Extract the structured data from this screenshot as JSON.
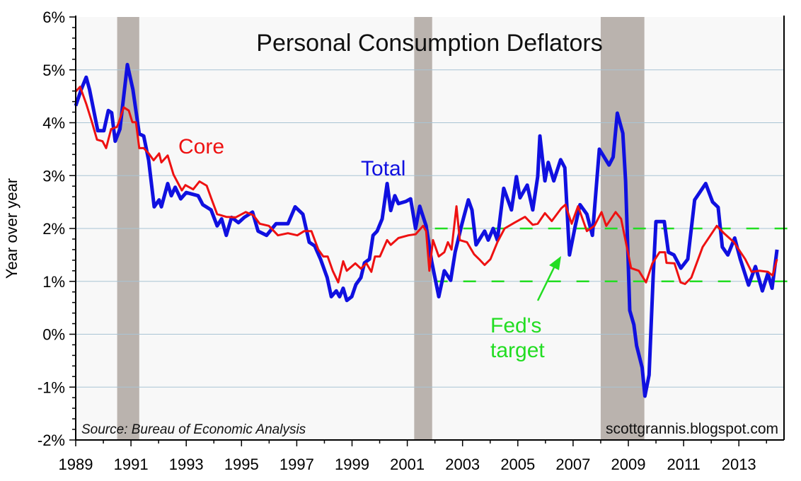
{
  "chart_data": {
    "type": "line",
    "title": "Personal Consumption Deflators",
    "ylabel": "Year over year",
    "xlabel": "",
    "xlim": [
      1989,
      2014.6
    ],
    "ylim": [
      -2,
      6
    ],
    "grid": true,
    "x_ticks": [
      "1989",
      "1991",
      "1993",
      "1995",
      "1997",
      "1999",
      "2001",
      "2003",
      "2005",
      "2007",
      "2009",
      "2011",
      "2013"
    ],
    "y_ticks": [
      "-2%",
      "-1%",
      "0%",
      "1%",
      "2%",
      "3%",
      "4%",
      "5%",
      "6%"
    ],
    "source": "Source:  Bureau of Economic Analysis",
    "credit": "scottgrannis.blogspot.com",
    "recessions": [
      [
        1990.5,
        1991.3
      ],
      [
        2001.25,
        2001.9
      ],
      [
        2008.0,
        2009.58
      ]
    ],
    "target": {
      "label_line1": "Fed's",
      "label_line2": "target",
      "low": 1,
      "high": 2,
      "start": 2002.0,
      "color": "#22dd22"
    },
    "colors": {
      "total": "#1010e0",
      "core": "#ee1111",
      "recession": "#bab3ae",
      "grid": "#a9c4d4",
      "background": "#f8f8f8"
    },
    "series": [
      {
        "name": "Total",
        "color": "#1010e0",
        "points": [
          [
            1989.0,
            4.32
          ],
          [
            1989.2,
            4.63
          ],
          [
            1989.38,
            4.86
          ],
          [
            1989.5,
            4.63
          ],
          [
            1989.8,
            3.85
          ],
          [
            1990.02,
            3.85
          ],
          [
            1990.18,
            4.23
          ],
          [
            1990.3,
            4.19
          ],
          [
            1990.43,
            3.65
          ],
          [
            1990.6,
            3.88
          ],
          [
            1990.87,
            5.1
          ],
          [
            1991.07,
            4.63
          ],
          [
            1991.3,
            3.79
          ],
          [
            1991.46,
            3.75
          ],
          [
            1991.64,
            3.29
          ],
          [
            1991.84,
            2.41
          ],
          [
            1992.02,
            2.54
          ],
          [
            1992.1,
            2.41
          ],
          [
            1992.33,
            2.85
          ],
          [
            1992.46,
            2.62
          ],
          [
            1992.6,
            2.78
          ],
          [
            1992.8,
            2.56
          ],
          [
            1993.0,
            2.68
          ],
          [
            1993.43,
            2.62
          ],
          [
            1993.6,
            2.45
          ],
          [
            1993.9,
            2.35
          ],
          [
            1994.12,
            2.05
          ],
          [
            1994.28,
            2.18
          ],
          [
            1994.45,
            1.87
          ],
          [
            1994.64,
            2.21
          ],
          [
            1994.89,
            2.11
          ],
          [
            1995.1,
            2.21
          ],
          [
            1995.4,
            2.31
          ],
          [
            1995.6,
            1.95
          ],
          [
            1995.91,
            1.87
          ],
          [
            1996.25,
            2.09
          ],
          [
            1996.68,
            2.09
          ],
          [
            1996.94,
            2.41
          ],
          [
            1997.22,
            2.27
          ],
          [
            1997.45,
            1.74
          ],
          [
            1997.65,
            1.67
          ],
          [
            1997.86,
            1.42
          ],
          [
            1998.1,
            1.07
          ],
          [
            1998.25,
            0.71
          ],
          [
            1998.43,
            0.82
          ],
          [
            1998.55,
            0.71
          ],
          [
            1998.68,
            0.87
          ],
          [
            1998.81,
            0.64
          ],
          [
            1998.99,
            0.71
          ],
          [
            1999.14,
            0.94
          ],
          [
            1999.32,
            1.07
          ],
          [
            1999.45,
            1.35
          ],
          [
            1999.63,
            1.42
          ],
          [
            1999.76,
            1.87
          ],
          [
            1999.91,
            1.95
          ],
          [
            2000.09,
            2.18
          ],
          [
            2000.27,
            2.85
          ],
          [
            2000.4,
            2.34
          ],
          [
            2000.55,
            2.62
          ],
          [
            2000.68,
            2.47
          ],
          [
            2000.94,
            2.51
          ],
          [
            2001.12,
            2.56
          ],
          [
            2001.3,
            2.0
          ],
          [
            2001.45,
            2.42
          ],
          [
            2001.68,
            2.05
          ],
          [
            2001.88,
            1.38
          ],
          [
            2002.14,
            0.71
          ],
          [
            2002.34,
            1.2
          ],
          [
            2002.57,
            1.02
          ],
          [
            2002.73,
            1.55
          ],
          [
            2002.98,
            2.09
          ],
          [
            2003.21,
            2.54
          ],
          [
            2003.34,
            2.35
          ],
          [
            2003.49,
            1.69
          ],
          [
            2003.8,
            1.95
          ],
          [
            2003.93,
            1.78
          ],
          [
            2004.11,
            2.0
          ],
          [
            2004.26,
            1.78
          ],
          [
            2004.49,
            2.76
          ],
          [
            2004.77,
            2.35
          ],
          [
            2004.95,
            2.98
          ],
          [
            2005.08,
            2.58
          ],
          [
            2005.34,
            2.82
          ],
          [
            2005.54,
            2.35
          ],
          [
            2005.72,
            2.98
          ],
          [
            2005.8,
            3.75
          ],
          [
            2005.98,
            2.9
          ],
          [
            2006.1,
            3.25
          ],
          [
            2006.3,
            2.9
          ],
          [
            2006.55,
            3.3
          ],
          [
            2006.7,
            3.15
          ],
          [
            2006.87,
            1.5
          ],
          [
            2007.08,
            2.05
          ],
          [
            2007.25,
            2.45
          ],
          [
            2007.5,
            2.27
          ],
          [
            2007.7,
            1.87
          ],
          [
            2007.95,
            3.5
          ],
          [
            2008.3,
            3.2
          ],
          [
            2008.45,
            3.35
          ],
          [
            2008.6,
            4.18
          ],
          [
            2008.8,
            3.8
          ],
          [
            2008.9,
            2.9
          ],
          [
            2009.05,
            0.45
          ],
          [
            2009.2,
            0.18
          ],
          [
            2009.3,
            -0.22
          ],
          [
            2009.5,
            -0.63
          ],
          [
            2009.6,
            -1.17
          ],
          [
            2009.75,
            -0.77
          ],
          [
            2009.9,
            1.1
          ],
          [
            2010.0,
            2.13
          ],
          [
            2010.3,
            2.13
          ],
          [
            2010.45,
            1.55
          ],
          [
            2010.65,
            1.5
          ],
          [
            2010.9,
            1.25
          ],
          [
            2011.15,
            1.42
          ],
          [
            2011.4,
            2.54
          ],
          [
            2011.8,
            2.85
          ],
          [
            2012.05,
            2.5
          ],
          [
            2012.25,
            2.4
          ],
          [
            2012.4,
            1.65
          ],
          [
            2012.6,
            1.5
          ],
          [
            2012.85,
            1.82
          ],
          [
            2013.05,
            1.42
          ],
          [
            2013.35,
            0.93
          ],
          [
            2013.6,
            1.28
          ],
          [
            2013.85,
            0.82
          ],
          [
            2014.05,
            1.15
          ],
          [
            2014.2,
            0.87
          ],
          [
            2014.38,
            1.6
          ]
        ]
      },
      {
        "name": "Core",
        "color": "#ee1111",
        "points": [
          [
            1989.0,
            4.59
          ],
          [
            1989.16,
            4.68
          ],
          [
            1989.38,
            4.36
          ],
          [
            1989.59,
            4.01
          ],
          [
            1989.77,
            3.68
          ],
          [
            1989.97,
            3.65
          ],
          [
            1990.1,
            3.52
          ],
          [
            1990.28,
            3.88
          ],
          [
            1990.49,
            3.92
          ],
          [
            1990.56,
            4.01
          ],
          [
            1990.74,
            4.29
          ],
          [
            1990.92,
            4.23
          ],
          [
            1991.05,
            4.01
          ],
          [
            1991.18,
            4.01
          ],
          [
            1991.3,
            3.52
          ],
          [
            1991.46,
            3.52
          ],
          [
            1991.64,
            3.42
          ],
          [
            1991.82,
            3.29
          ],
          [
            1992.02,
            3.42
          ],
          [
            1992.1,
            3.25
          ],
          [
            1992.33,
            3.38
          ],
          [
            1992.54,
            3.02
          ],
          [
            1992.71,
            2.85
          ],
          [
            1992.84,
            2.72
          ],
          [
            1992.97,
            2.82
          ],
          [
            1993.25,
            2.74
          ],
          [
            1993.48,
            2.89
          ],
          [
            1993.74,
            2.81
          ],
          [
            1993.9,
            2.58
          ],
          [
            1994.12,
            2.27
          ],
          [
            1994.45,
            2.22
          ],
          [
            1994.79,
            2.21
          ],
          [
            1995.15,
            2.31
          ],
          [
            1995.43,
            2.25
          ],
          [
            1995.66,
            2.09
          ],
          [
            1995.99,
            2.05
          ],
          [
            1996.32,
            1.87
          ],
          [
            1996.68,
            1.91
          ],
          [
            1997.02,
            1.87
          ],
          [
            1997.27,
            1.95
          ],
          [
            1997.53,
            1.95
          ],
          [
            1997.78,
            1.6
          ],
          [
            1997.96,
            1.47
          ],
          [
            1998.12,
            1.47
          ],
          [
            1998.3,
            1.2
          ],
          [
            1998.5,
            0.98
          ],
          [
            1998.68,
            1.38
          ],
          [
            1998.81,
            1.2
          ],
          [
            1999.12,
            1.34
          ],
          [
            1999.32,
            1.24
          ],
          [
            1999.52,
            1.34
          ],
          [
            1999.7,
            1.18
          ],
          [
            1999.83,
            1.47
          ],
          [
            2000.01,
            1.47
          ],
          [
            2000.27,
            1.78
          ],
          [
            2000.4,
            1.69
          ],
          [
            2000.68,
            1.82
          ],
          [
            2001.04,
            1.87
          ],
          [
            2001.3,
            1.89
          ],
          [
            2001.57,
            2.05
          ],
          [
            2001.68,
            1.95
          ],
          [
            2001.8,
            1.2
          ],
          [
            2001.93,
            1.78
          ],
          [
            2002.14,
            1.47
          ],
          [
            2002.34,
            1.55
          ],
          [
            2002.47,
            1.74
          ],
          [
            2002.6,
            1.6
          ],
          [
            2002.78,
            2.42
          ],
          [
            2002.9,
            1.78
          ],
          [
            2003.16,
            1.74
          ],
          [
            2003.42,
            1.51
          ],
          [
            2003.6,
            1.42
          ],
          [
            2003.8,
            1.31
          ],
          [
            2004.01,
            1.42
          ],
          [
            2004.26,
            1.74
          ],
          [
            2004.52,
            2.0
          ],
          [
            2004.88,
            2.11
          ],
          [
            2005.26,
            2.22
          ],
          [
            2005.54,
            2.07
          ],
          [
            2005.72,
            2.09
          ],
          [
            2005.98,
            2.29
          ],
          [
            2006.23,
            2.14
          ],
          [
            2006.57,
            2.38
          ],
          [
            2006.72,
            2.45
          ],
          [
            2006.95,
            2.09
          ],
          [
            2007.18,
            2.42
          ],
          [
            2007.5,
            1.95
          ],
          [
            2007.77,
            2.05
          ],
          [
            2008.03,
            2.31
          ],
          [
            2008.2,
            2.05
          ],
          [
            2008.54,
            2.31
          ],
          [
            2008.74,
            2.18
          ],
          [
            2009.1,
            1.25
          ],
          [
            2009.38,
            1.2
          ],
          [
            2009.64,
            0.98
          ],
          [
            2009.87,
            1.34
          ],
          [
            2010.13,
            1.55
          ],
          [
            2010.33,
            1.55
          ],
          [
            2010.38,
            1.35
          ],
          [
            2010.67,
            1.34
          ],
          [
            2010.89,
            0.98
          ],
          [
            2011.05,
            0.95
          ],
          [
            2011.28,
            1.07
          ],
          [
            2011.69,
            1.65
          ],
          [
            2012.2,
            2.05
          ],
          [
            2012.46,
            1.91
          ],
          [
            2012.82,
            1.74
          ],
          [
            2013.23,
            1.42
          ],
          [
            2013.46,
            1.18
          ],
          [
            2013.74,
            1.2
          ],
          [
            2014.05,
            1.18
          ],
          [
            2014.22,
            1.11
          ],
          [
            2014.38,
            1.42
          ]
        ]
      }
    ]
  }
}
